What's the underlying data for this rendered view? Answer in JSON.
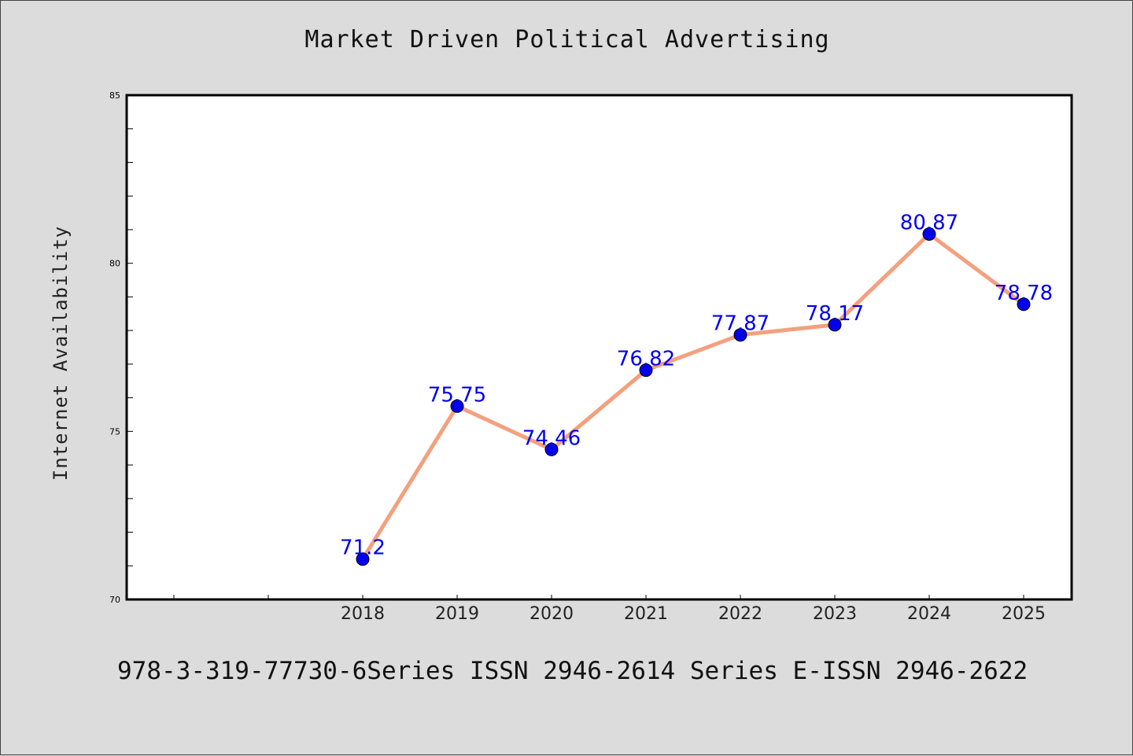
{
  "chart_data": {
    "type": "line",
    "title": "Market Driven Political Advertising",
    "xlabel": "",
    "ylabel": "Internet Availability",
    "categories": [
      "2018",
      "2019",
      "2020",
      "2021",
      "2022",
      "2023",
      "2024",
      "2025"
    ],
    "values": [
      71.2,
      75.75,
      74.46,
      76.82,
      77.87,
      78.17,
      80.87,
      78.78
    ],
    "data_labels": [
      "71.2",
      "75.75",
      "74.46",
      "76.82",
      "77.87",
      "78.17",
      "80.87",
      "78.78"
    ],
    "ylim": [
      70,
      85
    ],
    "yticks": [
      "70",
      "75",
      "80",
      "85"
    ],
    "grid": false,
    "line_color": "#f4a07e",
    "marker_color": "#0000ee",
    "label_color": "#0000ee"
  },
  "footer": {
    "text": "978-3-319-77730-6Series ISSN 2946-2614 Series E-ISSN 2946-2622"
  }
}
